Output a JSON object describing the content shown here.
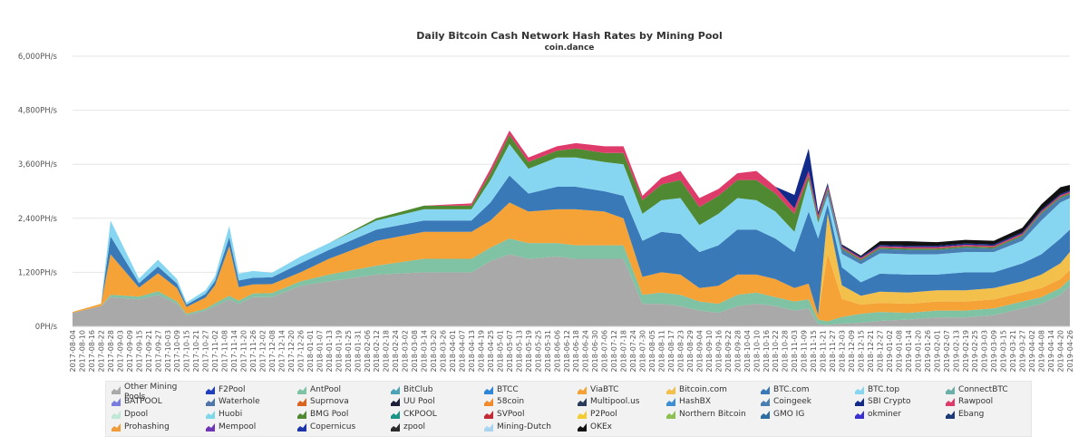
{
  "chart_data": {
    "type": "area",
    "title": "Daily Bitcoin Cash Network Hash Rates by Mining Pool",
    "subtitle": "coin.dance",
    "ylabel": "",
    "xlabel": "",
    "ylim": [
      0,
      6000
    ],
    "y_ticks": [
      "0PH/s",
      "1,200PH/s",
      "2,400PH/s",
      "3,600PH/s",
      "4,800PH/s",
      "6,000PH/s"
    ],
    "grid": true,
    "legend_position": "bottom",
    "x_ticks": [
      "2017-08-04",
      "2017-08-10",
      "2017-08-16",
      "2017-08-22",
      "2017-08-28",
      "2017-09-03",
      "2017-09-09",
      "2017-09-15",
      "2017-09-21",
      "2017-09-27",
      "2017-10-03",
      "2017-10-09",
      "2017-10-15",
      "2017-10-21",
      "2017-10-27",
      "2017-11-02",
      "2017-11-08",
      "2017-11-14",
      "2017-11-20",
      "2017-11-26",
      "2017-12-02",
      "2017-12-08",
      "2017-12-14",
      "2017-12-20",
      "2017-12-26",
      "2018-01-01",
      "2018-01-07",
      "2018-01-13",
      "2018-01-19",
      "2018-01-25",
      "2018-01-31",
      "2018-02-06",
      "2018-02-12",
      "2018-02-18",
      "2018-02-24",
      "2018-03-02",
      "2018-03-08",
      "2018-03-14",
      "2018-03-20",
      "2018-03-26",
      "2018-04-01",
      "2018-04-07",
      "2018-04-13",
      "2018-04-19",
      "2018-04-25",
      "2018-05-01",
      "2018-05-07",
      "2018-05-13",
      "2018-05-19",
      "2018-05-25",
      "2018-05-31",
      "2018-06-06",
      "2018-06-12",
      "2018-06-18",
      "2018-06-24",
      "2018-06-30",
      "2018-07-06",
      "2018-07-12",
      "2018-07-18",
      "2018-07-24",
      "2018-07-30",
      "2018-08-05",
      "2018-08-11",
      "2018-08-17",
      "2018-08-23",
      "2018-08-29",
      "2018-09-04",
      "2018-09-10",
      "2018-09-16",
      "2018-09-22",
      "2018-09-28",
      "2018-10-04",
      "2018-10-10",
      "2018-10-16",
      "2018-10-22",
      "2018-10-28",
      "2018-11-03",
      "2018-11-09",
      "2018-11-15",
      "2018-11-21",
      "2018-11-27",
      "2018-12-03",
      "2018-12-09",
      "2018-12-15",
      "2018-12-21",
      "2018-12-27",
      "2019-01-02",
      "2019-01-08",
      "2019-01-14",
      "2019-01-20",
      "2019-01-26",
      "2019-02-01",
      "2019-02-07",
      "2019-02-13",
      "2019-02-19",
      "2019-02-25",
      "2019-03-03",
      "2019-03-09",
      "2019-03-15",
      "2019-03-21",
      "2019-03-27",
      "2019-04-02",
      "2019-04-08",
      "2019-04-14",
      "2019-04-20",
      "2019-04-26"
    ],
    "x_dates": [
      "2017-08-04",
      "2017-08-22",
      "2017-08-28",
      "2017-09-15",
      "2017-09-27",
      "2017-10-09",
      "2017-10-15",
      "2017-10-27",
      "2017-11-02",
      "2017-11-11",
      "2017-11-17",
      "2017-11-26",
      "2017-12-08",
      "2017-12-26",
      "2018-01-13",
      "2018-02-12",
      "2018-03-14",
      "2018-04-13",
      "2018-04-25",
      "2018-05-07",
      "2018-05-19",
      "2018-06-06",
      "2018-06-18",
      "2018-07-06",
      "2018-07-18",
      "2018-07-30",
      "2018-08-11",
      "2018-08-23",
      "2018-09-04",
      "2018-09-16",
      "2018-09-28",
      "2018-10-10",
      "2018-10-22",
      "2018-11-03",
      "2018-11-12",
      "2018-11-18",
      "2018-11-24",
      "2018-12-03",
      "2018-12-15",
      "2018-12-27",
      "2019-01-14",
      "2019-02-01",
      "2019-02-19",
      "2019-03-09",
      "2019-03-27",
      "2019-04-08",
      "2019-04-20",
      "2019-04-26"
    ],
    "series": [
      {
        "name": "Other Mining Pools",
        "values": [
          300,
          450,
          650,
          600,
          700,
          500,
          250,
          350,
          450,
          600,
          500,
          650,
          650,
          900,
          1000,
          1150,
          1200,
          1200,
          1450,
          1600,
          1500,
          1550,
          1500,
          1500,
          1500,
          500,
          500,
          450,
          350,
          300,
          450,
          500,
          450,
          350,
          400,
          50,
          30,
          60,
          80,
          120,
          150,
          200,
          200,
          250,
          400,
          500,
          700,
          900
        ]
      },
      {
        "name": "AntPool",
        "values": [
          0,
          0,
          50,
          60,
          80,
          50,
          30,
          40,
          60,
          80,
          70,
          80,
          90,
          100,
          150,
          200,
          300,
          300,
          300,
          350,
          350,
          300,
          300,
          300,
          300,
          200,
          250,
          250,
          200,
          200,
          250,
          250,
          200,
          200,
          200,
          100,
          80,
          150,
          200,
          200,
          150,
          150,
          150,
          150,
          150,
          150,
          150,
          150
        ]
      },
      {
        "name": "ViaBTC",
        "values": [
          20,
          50,
          900,
          200,
          400,
          300,
          150,
          250,
          400,
          1100,
          300,
          200,
          200,
          200,
          350,
          550,
          600,
          600,
          600,
          800,
          700,
          750,
          800,
          750,
          600,
          400,
          450,
          450,
          300,
          400,
          450,
          400,
          400,
          300,
          350,
          100,
          1500,
          400,
          200,
          200,
          200,
          200,
          200,
          200,
          200,
          200,
          200,
          200
        ]
      },
      {
        "name": "Bitcoin.com",
        "values": [
          0,
          0,
          0,
          0,
          0,
          0,
          0,
          0,
          0,
          0,
          0,
          0,
          0,
          0,
          0,
          0,
          0,
          0,
          0,
          0,
          0,
          0,
          0,
          0,
          0,
          0,
          0,
          0,
          0,
          0,
          0,
          0,
          0,
          0,
          0,
          0,
          900,
          300,
          200,
          250,
          250,
          250,
          250,
          250,
          250,
          300,
          350,
          400
        ]
      },
      {
        "name": "BTC.com",
        "values": [
          0,
          0,
          400,
          100,
          150,
          100,
          50,
          80,
          100,
          200,
          150,
          150,
          150,
          200,
          200,
          250,
          250,
          250,
          400,
          600,
          400,
          500,
          500,
          450,
          500,
          800,
          900,
          900,
          800,
          900,
          1000,
          1000,
          900,
          800,
          1600,
          1700,
          200,
          400,
          300,
          400,
          400,
          350,
          400,
          350,
          400,
          450,
          550,
          500
        ]
      },
      {
        "name": "BTC.top",
        "values": [
          0,
          0,
          350,
          100,
          150,
          100,
          50,
          80,
          100,
          250,
          150,
          150,
          100,
          150,
          150,
          200,
          250,
          250,
          500,
          700,
          550,
          650,
          650,
          650,
          700,
          600,
          700,
          800,
          600,
          700,
          700,
          650,
          600,
          450,
          700,
          350,
          200,
          300,
          400,
          450,
          450,
          450,
          450,
          450,
          500,
          750,
          800,
          700
        ]
      },
      {
        "name": "Coingeek",
        "values": [
          0,
          0,
          0,
          0,
          0,
          0,
          0,
          0,
          0,
          0,
          0,
          0,
          0,
          0,
          0,
          0,
          0,
          0,
          0,
          0,
          0,
          0,
          0,
          0,
          0,
          0,
          0,
          0,
          0,
          0,
          0,
          0,
          0,
          0,
          0,
          0,
          100,
          100,
          80,
          100,
          100,
          100,
          100,
          80,
          100,
          150,
          100,
          80
        ]
      },
      {
        "name": "BMG Pool",
        "values": [
          0,
          0,
          0,
          0,
          0,
          0,
          0,
          0,
          0,
          0,
          0,
          0,
          0,
          0,
          0,
          50,
          80,
          80,
          150,
          200,
          150,
          150,
          200,
          200,
          250,
          300,
          350,
          400,
          400,
          400,
          400,
          450,
          400,
          400,
          100,
          80,
          50,
          30,
          30,
          30,
          30,
          30,
          30,
          30,
          30,
          30,
          30,
          30
        ]
      },
      {
        "name": "Rawpool",
        "values": [
          0,
          0,
          0,
          0,
          0,
          0,
          0,
          0,
          0,
          0,
          0,
          0,
          0,
          0,
          0,
          0,
          0,
          50,
          100,
          100,
          100,
          100,
          120,
          150,
          150,
          100,
          150,
          200,
          200,
          150,
          150,
          200,
          150,
          120,
          100,
          80,
          50,
          30,
          30,
          30,
          30,
          30,
          30,
          30,
          30,
          30,
          30,
          30
        ]
      },
      {
        "name": "SBI Crypto",
        "values": [
          0,
          0,
          0,
          0,
          0,
          0,
          0,
          0,
          0,
          0,
          0,
          0,
          0,
          0,
          0,
          0,
          0,
          0,
          0,
          0,
          0,
          0,
          0,
          0,
          0,
          0,
          0,
          0,
          0,
          0,
          0,
          0,
          0,
          300,
          500,
          80,
          50,
          30,
          30,
          30,
          30,
          30,
          30,
          30,
          30,
          30,
          30,
          30
        ]
      },
      {
        "name": "OKEx",
        "values": [
          0,
          0,
          0,
          0,
          0,
          0,
          0,
          0,
          0,
          0,
          0,
          0,
          0,
          0,
          0,
          0,
          0,
          0,
          0,
          0,
          0,
          0,
          0,
          0,
          0,
          0,
          0,
          0,
          0,
          0,
          0,
          0,
          0,
          0,
          0,
          0,
          20,
          20,
          20,
          80,
          100,
          80,
          80,
          80,
          100,
          120,
          150,
          120
        ]
      }
    ]
  },
  "legend": [
    {
      "label": "Other Mining\nPools",
      "color": "#a9a9a9"
    },
    {
      "label": "F2Pool",
      "color": "#1f3fbf"
    },
    {
      "label": "AntPool",
      "color": "#7fc2a4"
    },
    {
      "label": "BitClub",
      "color": "#4aa3b7"
    },
    {
      "label": "BTCC",
      "color": "#2f86d6"
    },
    {
      "label": "ViaBTC",
      "color": "#f5a236"
    },
    {
      "label": "Bitcoin.com",
      "color": "#f3c14b"
    },
    {
      "label": "BTC.com",
      "color": "#3979b8"
    },
    {
      "label": "BTC.top",
      "color": "#86d6f2"
    },
    {
      "label": "ConnectBTC",
      "color": "#6ab0a8"
    },
    {
      "label": "BATPOOL",
      "color": "#7a7de0"
    },
    {
      "label": "Waterhole",
      "color": "#4e76a8"
    },
    {
      "label": "Suprnova",
      "color": "#d9631f"
    },
    {
      "label": "UU Pool",
      "color": "#1b1f3a"
    },
    {
      "label": "58coin",
      "color": "#f08a2c"
    },
    {
      "label": "Multipool.us",
      "color": "#2a3a5a"
    },
    {
      "label": "HashBX",
      "color": "#3d8fd4"
    },
    {
      "label": "Coingeek",
      "color": "#4a7fb3"
    },
    {
      "label": "SBI Crypto",
      "color": "#122a8a"
    },
    {
      "label": "Rawpool",
      "color": "#df3b6a"
    },
    {
      "label": "Dpool",
      "color": "#bfe8d6"
    },
    {
      "label": "Huobi",
      "color": "#7fd8ea"
    },
    {
      "label": "BMG Pool",
      "color": "#4f8a33"
    },
    {
      "label": "CKPOOL",
      "color": "#1d9488"
    },
    {
      "label": "SVPool",
      "color": "#c22b35"
    },
    {
      "label": "P2Pool",
      "color": "#f3cd2f"
    },
    {
      "label": "Northern Bitcoin",
      "color": "#8cc152"
    },
    {
      "label": "GMO IG",
      "color": "#2e6da4"
    },
    {
      "label": "okminer",
      "color": "#3a2fd0"
    },
    {
      "label": "Ebang",
      "color": "#1c3a78"
    },
    {
      "label": "Prohashing",
      "color": "#f29b38"
    },
    {
      "label": "Mempool",
      "color": "#6f34b8"
    },
    {
      "label": "Copernicus",
      "color": "#1d35a8"
    },
    {
      "label": "zpool",
      "color": "#2b2b2b"
    },
    {
      "label": "Mining-Dutch",
      "color": "#a8d4f0"
    },
    {
      "label": "OKEx",
      "color": "#111111"
    }
  ]
}
